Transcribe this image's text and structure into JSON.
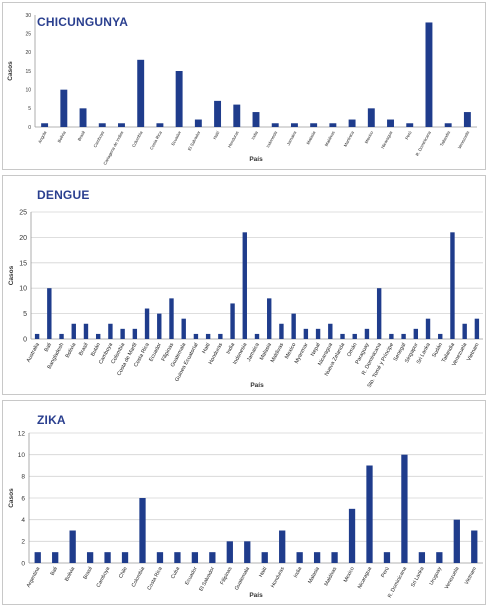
{
  "chart_data": [
    {
      "type": "bar",
      "title": "CHICUNGUNYA",
      "xlabel": "País",
      "ylabel": "Casos",
      "ylim": [
        0,
        30
      ],
      "yticks": [
        0,
        5,
        10,
        15,
        20,
        25,
        30
      ],
      "grid": false,
      "bar_color": "#1f3c8c",
      "categories": [
        "Angola",
        "Bolivia",
        "Brasil",
        "Camboya",
        "Cartagena de Indias",
        "Colombia",
        "Costa Rica",
        "Ecuador",
        "El Salvador",
        "Haití",
        "Honduras",
        "India",
        "Indonesia",
        "Jamaica",
        "Malasia",
        "Maldivas",
        "Martinica",
        "Mexico",
        "Nicaragua",
        "Perú",
        "R. Dominicana",
        "Tailandia",
        "Venezuela"
      ],
      "values": [
        1,
        10,
        5,
        1,
        1,
        18,
        1,
        15,
        2,
        7,
        6,
        4,
        1,
        1,
        1,
        1,
        2,
        5,
        2,
        1,
        28,
        1,
        4
      ]
    },
    {
      "type": "bar",
      "title": "DENGUE",
      "xlabel": "País",
      "ylabel": "Casos",
      "ylim": [
        0,
        25
      ],
      "yticks": [
        0,
        5,
        10,
        15,
        20,
        25
      ],
      "grid": true,
      "bar_color": "#1f3c8c",
      "categories": [
        "Australia",
        "Bali",
        "Bangladesh",
        "Bolivia",
        "Brasil",
        "Bután",
        "Camboya",
        "Colombia",
        "Costa de Marfil",
        "Costa Rica",
        "Ecuador",
        "Filipinas",
        "Guatemala",
        "Guinea Ecuatorial",
        "Haití",
        "Honduras",
        "India",
        "Indonesia",
        "Jamaica",
        "Malasia",
        "Maldivas",
        "Mexico",
        "Myanmar",
        "Nepal",
        "Nicaragua",
        "Nueva Zelanda",
        "Omán",
        "Paraguay",
        "R. Dominicana",
        "Sto. Tomé y Príncipe",
        "Senegal",
        "Singapur",
        "Sri Lanka",
        "Sudán",
        "Tailandia",
        "Venezuela",
        "Vietnam"
      ],
      "values": [
        1,
        10,
        1,
        3,
        3,
        1,
        3,
        2,
        2,
        6,
        5,
        8,
        4,
        1,
        1,
        1,
        7,
        21,
        1,
        8,
        3,
        5,
        2,
        2,
        3,
        1,
        1,
        2,
        10,
        1,
        1,
        2,
        4,
        1,
        21,
        3,
        4
      ]
    },
    {
      "type": "bar",
      "title": "ZIKA",
      "xlabel": "País",
      "ylabel": "Casos",
      "ylim": [
        0,
        12
      ],
      "yticks": [
        0,
        2,
        4,
        6,
        8,
        10,
        12
      ],
      "grid": true,
      "bar_color": "#1f3c8c",
      "categories": [
        "Argentina",
        "Bali",
        "Bolivia",
        "Brasil",
        "Camboya",
        "Chile",
        "Colombia",
        "Costa Rica",
        "Cuba",
        "Ecuador",
        "El Salvador",
        "Filipinas",
        "Guatemala",
        "Haití",
        "Honduras",
        "India",
        "Malasia",
        "Maldivas",
        "Mexico",
        "Nicaragua",
        "Perú",
        "R. Dominicana",
        "Sri Lanka",
        "Uruguay",
        "Venezuela",
        "Vietnam"
      ],
      "values": [
        1,
        1,
        3,
        1,
        1,
        1,
        6,
        1,
        1,
        1,
        1,
        2,
        2,
        1,
        3,
        1,
        1,
        1,
        5,
        9,
        1,
        10,
        1,
        1,
        4,
        3
      ]
    }
  ]
}
